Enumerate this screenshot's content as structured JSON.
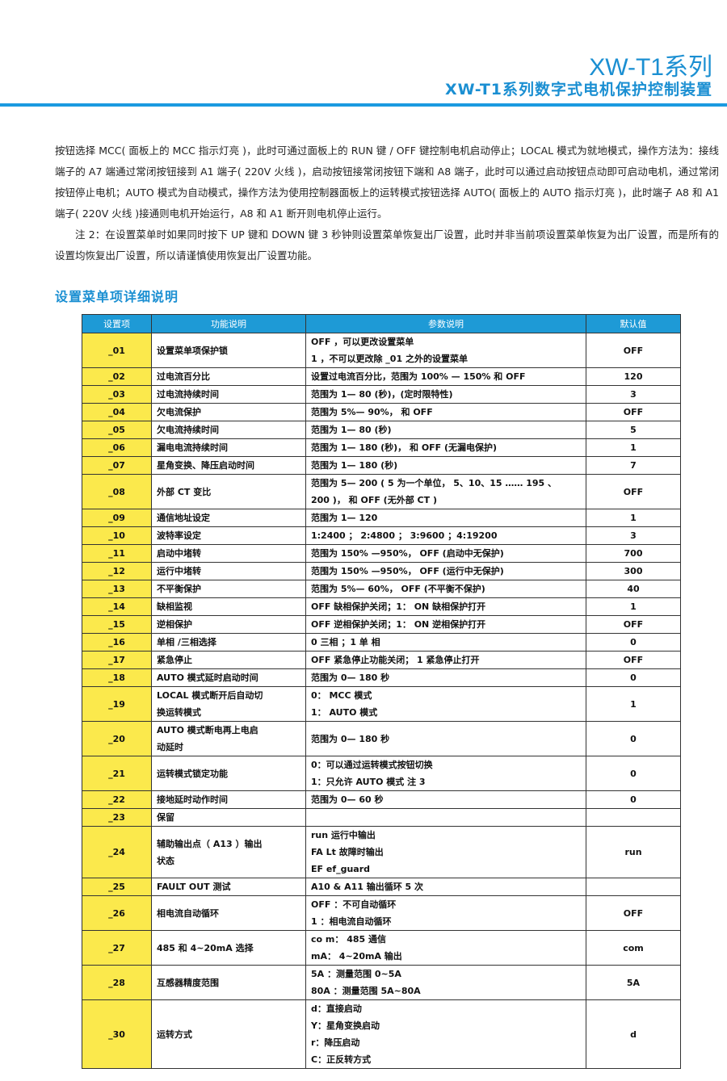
{
  "header": {
    "title": "XW-T1系列",
    "subtitle": "XW-T1系列数字式电机保护控制装置"
  },
  "paragraphs": [
    "按钮选择 MCC( 面板上的 MCC 指示灯亮 )，此时可通过面板上的 RUN 键 / OFF 键控制电机启动停止；LOCAL 模式为就地模式，操作方法为：接线端子的 A7 端通过常闭按钮接到 A1 端子( 220V 火线 )，启动按钮接常闭按钮下端和 A8 端子，此时可以通过启动按钮点动即可启动电机，通过常闭按钮停止电机；AUTO 模式为自动模式，操作方法为使用控制器面板上的运转模式按钮选择 AUTO( 面板上的 AUTO 指示灯亮 )，此时端子 A8 和 A1 端子( 220V 火线 )接通则电机开始运行，A8 和 A1 断开则电机停止运行。",
    "注 2：在设置菜单时如果同时按下 UP 键和 DOWN 键 3 秒钟则设置菜单恢复出厂设置，此时并非当前项设置菜单恢复为出厂设置，而是所有的设置均恢复出厂设置，所以请谨慎使用恢复出厂设置功能。"
  ],
  "section_title": "设置菜单项详细说明",
  "table": {
    "headers": [
      "设置项",
      "功能说明",
      "参数说明",
      "默认值"
    ],
    "rows": [
      [
        "_01",
        "设置菜单项保护锁",
        [
          "OFF ，可以更改设置菜单",
          "1 ，不可以更改除 _01 之外的设置菜单"
        ],
        "OFF"
      ],
      [
        "_02",
        "过电流百分比",
        "设置过电流百分比，范围为 100% — 150% 和 OFF",
        "120"
      ],
      [
        "_03",
        "过电流持续时间",
        "范围为 1— 80 (秒)，(定时限特性)",
        "3"
      ],
      [
        "_04",
        "欠电流保护",
        "范围为 5%— 90%， 和 OFF",
        "OFF"
      ],
      [
        "_05",
        "欠电流持续时间",
        "范围为 1— 80 (秒)",
        "5"
      ],
      [
        "_06",
        "漏电电流持续时间",
        "范围为 1— 180 (秒)， 和 OFF (无漏电保护)",
        "1"
      ],
      [
        "_07",
        "星角变换、降压启动时间",
        "范围为 1— 180 (秒)",
        "7"
      ],
      [
        "_08",
        "外部 CT 变比",
        [
          "范围为 5— 200 ( 5 为一个单位， 5、10、15 …… 195 、",
          "200 )， 和  OFF (无外部 CT )"
        ],
        "OFF"
      ],
      [
        "_09",
        "通信地址设定",
        "范围为 1— 120",
        "1"
      ],
      [
        "_10",
        "波特率设定",
        "1:2400 ； 2:4800 ； 3:9600 ；4:19200",
        "3"
      ],
      [
        "_11",
        "启动中堵转",
        "范围为 150% —950%， OFF (启动中无保护)",
        "700"
      ],
      [
        "_12",
        "运行中堵转",
        "范围为 150% —950%， OFF (运行中无保护)",
        "300"
      ],
      [
        "_13",
        "不平衡保护",
        "范围为 5%— 60%， OFF (不平衡不保护)",
        "40"
      ],
      [
        "_14",
        "缺相监视",
        "OFF  缺相保护关闭；1： ON  缺相保护打开",
        "1"
      ],
      [
        "_15",
        "逆相保护",
        "OFF  逆相保护关闭；1： ON  逆相保护打开",
        "OFF"
      ],
      [
        "_16",
        "单相 /三相选择",
        "0  三相 ；1  单 相",
        "0"
      ],
      [
        "_17",
        "紧急停止",
        "OFF  紧急停止功能关闭； 1  紧急停止打开",
        "OFF"
      ],
      [
        "_18",
        "AUTO  模式延时启动时间",
        "范围为 0— 180 秒",
        "0"
      ],
      [
        "_19",
        [
          "LOCAL  模式断开后自动切",
          "换运转模式"
        ],
        [
          "0： MCC  模式",
          "1： AUTO  模式"
        ],
        "1"
      ],
      [
        "_20",
        [
          "AUTO  模式断电再上电启",
          "动延时"
        ],
        "范围为 0— 180 秒",
        "0"
      ],
      [
        "_21",
        "运转模式锁定功能",
        [
          "0：可以通过运转模式按钮切换",
          "1：只允许 AUTO  模式   注 3"
        ],
        "0"
      ],
      [
        "_22",
        "接地延时动作时间",
        "范围为 0— 60 秒",
        "0"
      ],
      [
        "_23",
        "保留",
        null,
        null
      ],
      [
        "_24",
        [
          "辅助输出点（ A13 ）输出",
          "状态"
        ],
        [
          "run    运行中输出",
          "FA Lt   故障时输出",
          "EF       ef_guard"
        ],
        "run"
      ],
      [
        "_25",
        "FAULT OUT  测试",
        "A10 & A11  输出循环 5 次",
        null
      ],
      [
        "_26",
        "相电流自动循环",
        [
          "OFF ：不可自动循环",
          "1 ：相电流自动循环"
        ],
        "OFF"
      ],
      [
        "_27",
        "485 和 4~20mA 选择",
        [
          "co m： 485  通信",
          "mA： 4~20mA  输出"
        ],
        "com"
      ],
      [
        "_28",
        "互感器精度范围",
        [
          "5A ：测量范围  0~5A",
          "80A ：测量范围  5A~80A"
        ],
        "5A"
      ],
      [
        "_30",
        "运转方式",
        [
          "d：直接启动",
          "Y：星角变换启动",
          "r：降压启动",
          "C：正反转方式"
        ],
        "d"
      ]
    ]
  }
}
